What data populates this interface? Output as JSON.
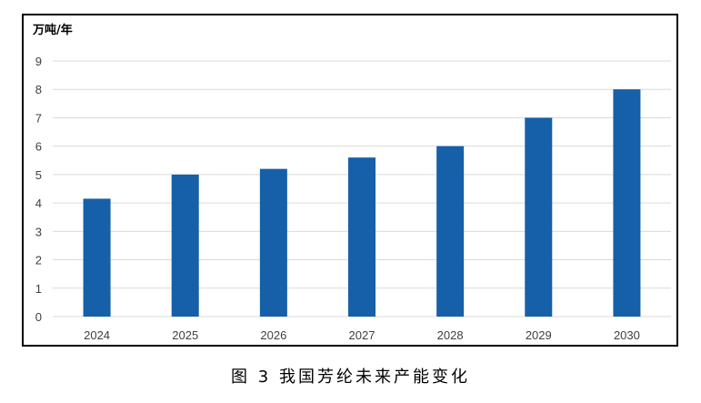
{
  "figure": {
    "caption": "图 3  我国芳纶未来产能变化"
  },
  "chart_data": {
    "type": "bar",
    "unit_label": "万吨/年",
    "categories": [
      "2024",
      "2025",
      "2026",
      "2027",
      "2028",
      "2029",
      "2030"
    ],
    "values": [
      4.15,
      5.0,
      5.2,
      5.6,
      6.0,
      7.0,
      8.0
    ],
    "ylim": [
      0,
      9
    ],
    "yticks": [
      0,
      1,
      2,
      3,
      4,
      5,
      6,
      7,
      8,
      9
    ],
    "grid": true,
    "legend": "none",
    "bar_color": "#1560A8",
    "grid_color": "#D9D9D9"
  }
}
